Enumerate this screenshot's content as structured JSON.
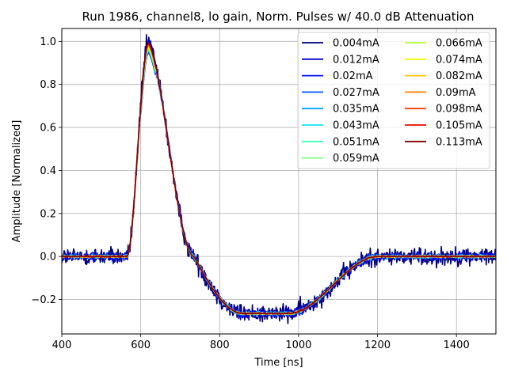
{
  "chart_data": {
    "type": "line",
    "title": "Run 1986, channel8, lo gain, Norm. Pulses w/ 40.0 dB Attenuation",
    "xlabel": "Time [ns]",
    "ylabel": "Amplitude [Normalized]",
    "xlim": [
      400,
      1500
    ],
    "ylim": [
      -0.36,
      1.06
    ],
    "xticks": [
      400,
      600,
      800,
      1000,
      1200,
      1400
    ],
    "xtick_labels": [
      "400",
      "600",
      "800",
      "1000",
      "1200",
      "1400"
    ],
    "yticks": [
      -0.2,
      0.0,
      0.2,
      0.4,
      0.6,
      0.8,
      1.0
    ],
    "ytick_labels": [
      "−0.2",
      "0.0",
      "0.2",
      "0.4",
      "0.6",
      "0.8",
      "1.0"
    ],
    "grid": true,
    "legend_placement": "top-right",
    "legend_columns": 2,
    "pulse_shape": {
      "baseline": 0.0,
      "rise_start": 565,
      "peak_time": 620,
      "peak_value": 1.0,
      "zero_cross": 735,
      "trough_value": -0.265,
      "trough_end": 975,
      "recovery_end": 1200
    },
    "series": [
      {
        "name": "0.004mA",
        "color": "#00007f",
        "noise": 0.022
      },
      {
        "name": "0.012mA",
        "color": "#0000c8",
        "noise": 0.012
      },
      {
        "name": "0.02mA",
        "color": "#0012ff",
        "noise": 0.008
      },
      {
        "name": "0.027mA",
        "color": "#005cff",
        "noise": 0.006
      },
      {
        "name": "0.035mA",
        "color": "#00a4ff",
        "noise": 0.005
      },
      {
        "name": "0.043mA",
        "color": "#0de6ef",
        "noise": 0.004
      },
      {
        "name": "0.051mA",
        "color": "#3dffba",
        "noise": 0.003
      },
      {
        "name": "0.059mA",
        "color": "#7bff7b",
        "noise": 0.003
      },
      {
        "name": "0.066mA",
        "color": "#baff3d",
        "noise": 0.003
      },
      {
        "name": "0.074mA",
        "color": "#f1fc06",
        "noise": 0.002
      },
      {
        "name": "0.082mA",
        "color": "#ffc400",
        "noise": 0.002
      },
      {
        "name": "0.09mA",
        "color": "#ff8200",
        "noise": 0.002
      },
      {
        "name": "0.098mA",
        "color": "#ff4000",
        "noise": 0.002
      },
      {
        "name": "0.105mA",
        "color": "#ed0400",
        "noise": 0.002
      },
      {
        "name": "0.113mA",
        "color": "#7f0000",
        "noise": 0.001
      }
    ]
  }
}
